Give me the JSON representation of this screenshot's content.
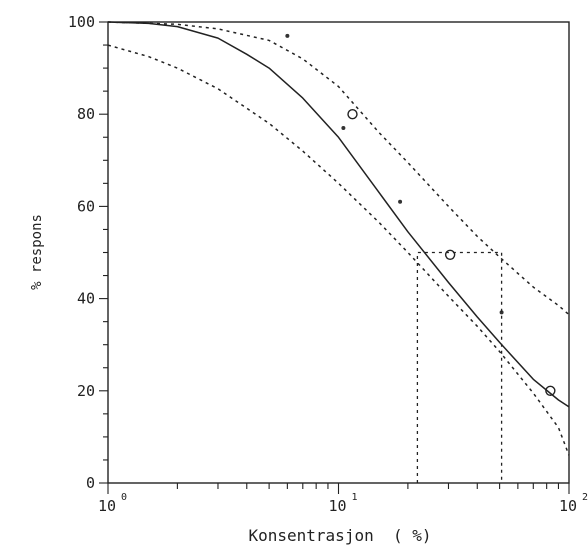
{
  "chart_data": {
    "type": "line",
    "title": "",
    "xlabel": "Konsentrasjon  ( %)",
    "ylabel": "% respons",
    "x_scale": "log",
    "xlim": [
      1,
      100
    ],
    "ylim": [
      0,
      100
    ],
    "x_ticks": [
      {
        "value": 1,
        "base": "10",
        "exp": "0"
      },
      {
        "value": 10,
        "base": "10",
        "exp": "1"
      },
      {
        "value": 100,
        "base": "10",
        "exp": "2"
      }
    ],
    "y_ticks": [
      0,
      20,
      40,
      60,
      80,
      100
    ],
    "grid": false,
    "series": [
      {
        "style": "solid",
        "x": [
          1,
          1.5,
          2,
          3,
          4,
          5,
          7,
          10,
          15,
          20,
          30,
          40,
          50,
          70,
          90,
          100
        ],
        "y": [
          100,
          99.7,
          99,
          96.5,
          93,
          90,
          83.5,
          75,
          63,
          54.5,
          43.5,
          36,
          30.5,
          22.5,
          18,
          16.5
        ]
      },
      {
        "style": "dashed",
        "x": [
          1,
          2,
          3,
          5,
          7,
          10,
          15,
          20,
          30,
          40,
          50,
          70,
          90,
          100
        ],
        "y": [
          100,
          99.5,
          98.5,
          96,
          92,
          86,
          76,
          69.5,
          60,
          53.5,
          49,
          42.5,
          38.5,
          36.5
        ]
      },
      {
        "style": "dashed",
        "x": [
          1,
          1.5,
          2,
          3,
          5,
          7,
          10,
          15,
          20,
          30,
          40,
          50,
          70,
          90,
          100
        ],
        "y": [
          95,
          92.5,
          90,
          85.5,
          78,
          72,
          65,
          56.5,
          50,
          40.5,
          34,
          28.5,
          19.5,
          12,
          6
        ]
      },
      {
        "style": "circle-markers",
        "x": [
          11.5,
          30.5,
          83
        ],
        "y": [
          80,
          49.5,
          20
        ]
      },
      {
        "style": "dot-markers",
        "x": [
          6,
          10.5,
          18.5,
          51
        ],
        "y": [
          97,
          77,
          61,
          37
        ]
      },
      {
        "style": "dashed-reference",
        "x": [
          22,
          22,
          51,
          51
        ],
        "y": [
          0,
          50,
          50,
          0
        ]
      }
    ]
  }
}
